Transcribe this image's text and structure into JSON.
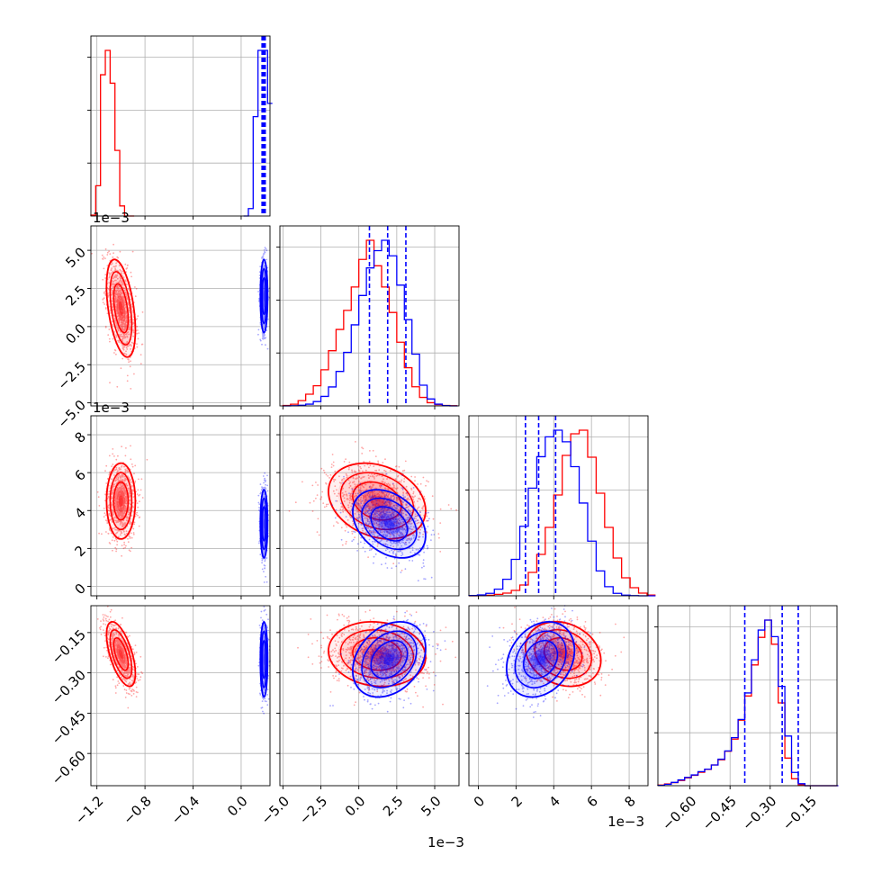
{
  "chart_data": {
    "type": "corner",
    "grid": true,
    "series": [
      {
        "name": "",
        "color": "#ff0000"
      },
      {
        "name": "",
        "color": "#0000ff"
      }
    ],
    "parameters": [
      {
        "index": 0,
        "range": [
          -1.25,
          0.24
        ],
        "ticks": [
          -1.2,
          -0.8,
          -0.4,
          0.0
        ],
        "tick_labels": [
          "−1.2",
          "−0.8",
          "−0.4",
          "0.0"
        ],
        "offset_text": ""
      },
      {
        "index": 1,
        "range": [
          -5.2,
          6.6
        ],
        "ticks": [
          -5.0,
          -2.5,
          0.0,
          2.5,
          5.0
        ],
        "tick_labels": [
          "−5.0",
          "−2.5",
          "0.0",
          "2.5",
          "5.0"
        ],
        "offset_text": "1e−3"
      },
      {
        "index": 2,
        "range": [
          -0.5,
          9.0
        ],
        "ticks": [
          0,
          2,
          4,
          6,
          8
        ],
        "tick_labels": [
          "0",
          "2",
          "4",
          "6",
          "8"
        ],
        "offset_text": "1e−3"
      },
      {
        "index": 3,
        "range": [
          -0.72,
          -0.05
        ],
        "ticks": [
          -0.6,
          -0.45,
          -0.3,
          -0.15
        ],
        "tick_labels": [
          "−0.60",
          "−0.45",
          "−0.30",
          "−0.15"
        ],
        "offset_text": ""
      }
    ],
    "histograms": {
      "p0": {
        "red_edges_start": -1.25,
        "red_bin_width": 0.04,
        "red_counts": [
          5,
          180,
          840,
          985,
          790,
          390,
          60,
          0,
          0
        ],
        "blue_edges_start": 0.02,
        "blue_bin_width": 0.04,
        "blue_counts": [
          0,
          45,
          600,
          1000,
          1000,
          680
        ],
        "blue_quantiles": [
          0.174,
          0.183,
          0.192,
          0.2
        ]
      },
      "p1": {
        "red_edges_start": -5.0,
        "red_bin_width": 0.5,
        "red_counts": [
          2,
          8,
          25,
          55,
          95,
          170,
          260,
          360,
          450,
          560,
          690,
          780,
          660,
          560,
          440,
          300,
          180,
          90,
          40,
          15,
          6,
          2,
          1
        ],
        "blue_edges_start": -5.0,
        "blue_bin_width": 0.5,
        "blue_counts": [
          0,
          1,
          4,
          10,
          25,
          55,
          110,
          200,
          310,
          470,
          640,
          800,
          900,
          960,
          870,
          700,
          500,
          300,
          120,
          40,
          10,
          2,
          0
        ],
        "blue_quantiles": [
          0.7,
          1.9,
          3.1
        ]
      },
      "p2": {
        "red_edges_start": -0.5,
        "red_bin_width": 0.45,
        "red_counts": [
          0,
          1,
          3,
          8,
          15,
          30,
          60,
          130,
          230,
          380,
          560,
          780,
          900,
          920,
          770,
          570,
          380,
          210,
          100,
          45,
          15,
          4
        ],
        "blue_edges_start": -0.5,
        "blue_bin_width": 0.45,
        "blue_counts": [
          2,
          5,
          15,
          40,
          100,
          220,
          420,
          650,
          840,
          960,
          1000,
          930,
          780,
          560,
          330,
          150,
          55,
          15,
          4,
          1,
          0,
          0
        ],
        "blue_quantiles": [
          2.5,
          3.2,
          4.1
        ]
      },
      "p3": {
        "red_edges_start": -0.72,
        "red_bin_width": 0.025,
        "red_counts": [
          4,
          10,
          18,
          30,
          45,
          60,
          78,
          95,
          120,
          150,
          200,
          270,
          380,
          520,
          700,
          860,
          960,
          820,
          480,
          160,
          40,
          5,
          0,
          0,
          0,
          0,
          0
        ],
        "blue_edges_start": -0.72,
        "blue_bin_width": 0.025,
        "blue_counts": [
          2,
          8,
          20,
          35,
          50,
          65,
          85,
          100,
          125,
          160,
          210,
          290,
          400,
          560,
          760,
          940,
          1000,
          900,
          600,
          300,
          80,
          12,
          0,
          0,
          0,
          0,
          0
        ],
        "blue_quantiles": [
          -0.395,
          -0.255,
          -0.195
        ]
      }
    },
    "red_2d": {
      "mean": [
        -1.0,
        1.2,
        4.5,
        -0.23
      ],
      "sd": [
        0.06,
        1.6,
        1.0,
        0.06
      ],
      "corr": [
        [
          1.0,
          -0.45,
          0.0,
          -0.6
        ],
        [
          -0.45,
          1.0,
          -0.25,
          -0.1
        ],
        [
          0.0,
          -0.25,
          1.0,
          -0.2
        ],
        [
          -0.6,
          -0.1,
          -0.2,
          1.0
        ]
      ]
    },
    "blue_2d": {
      "mean": [
        0.19,
        2.0,
        3.3,
        -0.25
      ],
      "sd": [
        0.015,
        1.2,
        0.9,
        0.07
      ],
      "corr": [
        [
          1.0,
          0.0,
          0.0,
          0.0
        ],
        [
          0.0,
          1.0,
          -0.35,
          0.3
        ],
        [
          0.0,
          -0.35,
          1.0,
          0.25
        ],
        [
          0.0,
          0.3,
          0.25,
          1.0
        ]
      ]
    }
  }
}
